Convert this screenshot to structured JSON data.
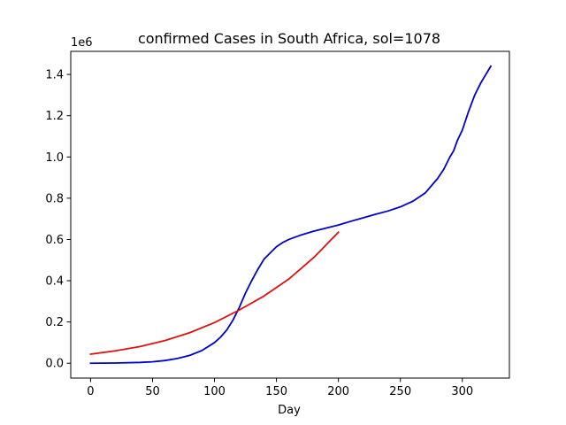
{
  "chart_data": {
    "type": "line",
    "title": "confirmed Cases in South Africa, sol=1078",
    "xlabel": "Day",
    "ylabel": "",
    "y_offset_label": "1e6",
    "xlim": [
      -16,
      338
    ],
    "ylim": [
      -0.072,
      1.512
    ],
    "grid": false,
    "x_ticks": [
      0,
      50,
      100,
      150,
      200,
      250,
      300
    ],
    "x_tick_labels": [
      "0",
      "50",
      "100",
      "150",
      "200",
      "250",
      "300"
    ],
    "y_ticks": [
      0.0,
      0.2,
      0.4,
      0.6,
      0.8,
      1.0,
      1.2,
      1.4
    ],
    "y_tick_labels": [
      "0.0",
      "0.2",
      "0.4",
      "0.6",
      "0.8",
      "1.0",
      "1.2",
      "1.4"
    ],
    "series": [
      {
        "color": "#0000cc",
        "x": [
          0,
          20,
          40,
          50,
          60,
          70,
          80,
          90,
          100,
          105,
          110,
          115,
          120,
          125,
          130,
          135,
          140,
          145,
          150,
          155,
          160,
          170,
          180,
          190,
          200,
          210,
          220,
          230,
          240,
          250,
          260,
          270,
          275,
          280,
          285,
          290,
          293,
          296,
          300,
          305,
          310,
          315,
          320,
          323
        ],
        "y": [
          0.0,
          0.001,
          0.004,
          0.007,
          0.013,
          0.023,
          0.038,
          0.062,
          0.1,
          0.127,
          0.162,
          0.21,
          0.27,
          0.34,
          0.4,
          0.455,
          0.505,
          0.535,
          0.565,
          0.585,
          0.6,
          0.622,
          0.64,
          0.655,
          0.67,
          0.688,
          0.705,
          0.722,
          0.738,
          0.758,
          0.785,
          0.825,
          0.86,
          0.895,
          0.94,
          1.0,
          1.03,
          1.08,
          1.13,
          1.22,
          1.3,
          1.36,
          1.41,
          1.44
        ]
      },
      {
        "color": "#dd1111",
        "x": [
          0,
          20,
          40,
          60,
          80,
          100,
          120,
          140,
          160,
          180,
          200
        ],
        "y": [
          0.044,
          0.06,
          0.081,
          0.11,
          0.148,
          0.197,
          0.258,
          0.326,
          0.408,
          0.512,
          0.635
        ]
      }
    ]
  }
}
